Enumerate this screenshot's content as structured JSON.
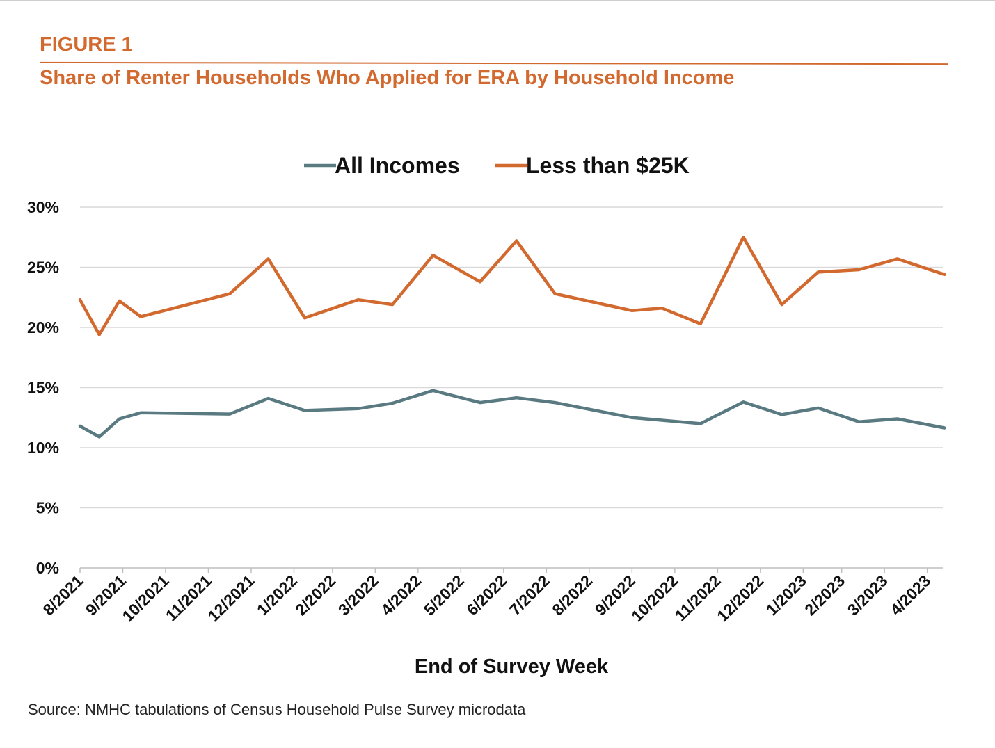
{
  "figure": {
    "label": "FIGURE 1",
    "title": "Share of Renter Households Who Applied for ERA by Household Income",
    "source": "Source: NMHC tabulations of Census Household Pulse Survey microdata"
  },
  "colors": {
    "accent": "#D2692F",
    "all_incomes": "#5A7A82",
    "less_25k": "#D2692F",
    "grid": "#d9d9d9"
  },
  "chart_data": {
    "type": "line",
    "title": "",
    "xlabel": "End of Survey Week",
    "ylabel": "",
    "ylim": [
      0,
      30
    ],
    "yticks": [
      "0%",
      "5%",
      "10%",
      "15%",
      "20%",
      "25%",
      "30%"
    ],
    "ytick_values": [
      0,
      5,
      10,
      15,
      20,
      25,
      30
    ],
    "x_range": [
      0,
      20.2
    ],
    "categories": [
      "8/2021",
      "9/2021",
      "10/2021",
      "11/2021",
      "12/2021",
      "1/2022",
      "2/2022",
      "3/2022",
      "4/2022",
      "5/2022",
      "6/2022",
      "7/2022",
      "8/2022",
      "9/2022",
      "10/2022",
      "11/2022",
      "12/2022",
      "1/2023",
      "2/2023",
      "3/2023",
      "4/2023"
    ],
    "category_positions": [
      0.0,
      1.0,
      2.0,
      3.0,
      4.0,
      5.0,
      5.9,
      6.9,
      7.9,
      8.9,
      9.9,
      10.9,
      11.9,
      12.9,
      13.9,
      14.9,
      15.9,
      16.9,
      17.8,
      18.8,
      19.8
    ],
    "legend_position": "top-center",
    "grid": true,
    "series": [
      {
        "name": "All Incomes",
        "color_key": "all_incomes",
        "x": [
          0,
          0.45,
          0.92,
          1.42,
          3.5,
          4.4,
          5.25,
          6.5,
          7.3,
          8.25,
          9.35,
          10.2,
          11.1,
          12.9,
          14.5,
          15.5,
          16.4,
          17.25,
          18.2,
          19.1,
          20.2
        ],
        "values": [
          11.8,
          10.9,
          12.4,
          12.9,
          12.8,
          14.1,
          13.1,
          13.25,
          13.7,
          14.75,
          13.75,
          14.15,
          13.75,
          12.5,
          12.0,
          13.8,
          12.75,
          13.3,
          12.15,
          12.4,
          11.65
        ]
      },
      {
        "name": "Less than $25K",
        "color_key": "less_25k",
        "x": [
          0,
          0.45,
          0.92,
          1.42,
          3.5,
          4.4,
          5.25,
          6.5,
          7.3,
          8.25,
          9.35,
          10.2,
          11.1,
          12.9,
          13.6,
          14.5,
          15.5,
          16.4,
          17.25,
          18.2,
          19.1,
          20.2
        ],
        "values": [
          22.3,
          19.4,
          22.2,
          20.9,
          22.8,
          25.7,
          20.8,
          22.3,
          21.9,
          26.0,
          23.8,
          27.2,
          22.8,
          21.4,
          21.6,
          20.3,
          27.5,
          21.9,
          24.6,
          24.8,
          25.7,
          24.4
        ]
      }
    ]
  }
}
